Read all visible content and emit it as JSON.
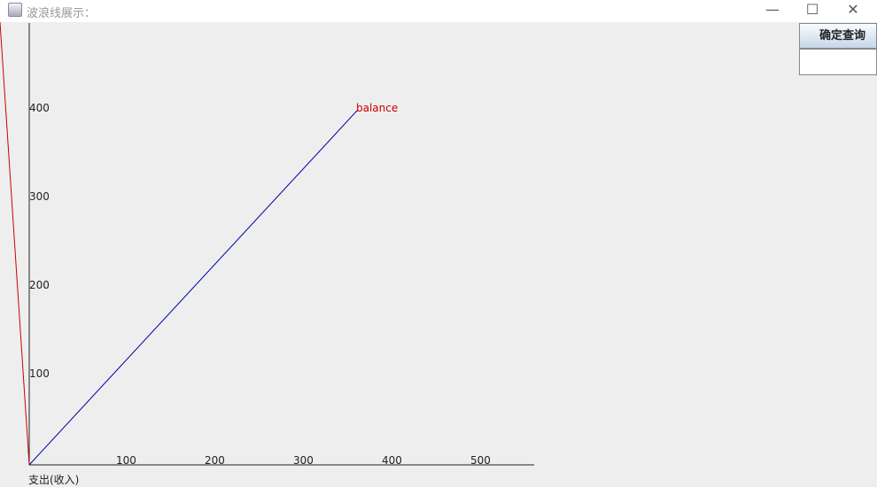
{
  "window": {
    "title": "波浪线展示：",
    "minimize": "—",
    "maximize": "☐",
    "close": "✕"
  },
  "controls": {
    "query_button": "确定查询",
    "query_input": ""
  },
  "chart_data": {
    "type": "line",
    "xlabel": "支出(收入)",
    "ylabel": "",
    "xticks": [
      100,
      200,
      300,
      400,
      500
    ],
    "yticks": [
      100,
      200,
      300,
      400
    ],
    "xlim": [
      0,
      570
    ],
    "ylim": [
      0,
      500
    ],
    "series": [
      {
        "name": "",
        "color": "#cc0000",
        "points": [
          [
            -33,
            500
          ],
          [
            0,
            0
          ]
        ]
      },
      {
        "name": "balance",
        "color": "#0000aa",
        "points": [
          [
            0,
            0
          ],
          [
            370,
            400
          ]
        ]
      }
    ],
    "annotations": [
      {
        "text": "balance",
        "x": 370,
        "y": 400,
        "color": "#cc0000"
      }
    ]
  }
}
